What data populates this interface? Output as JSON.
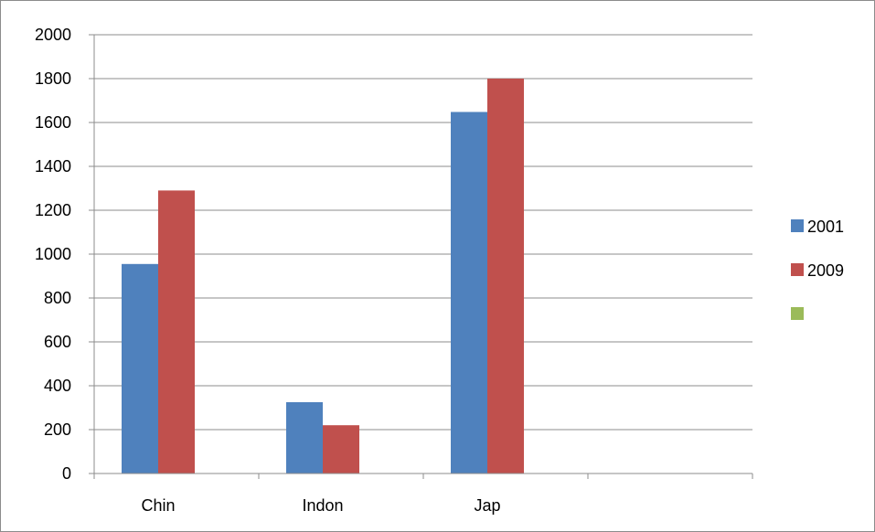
{
  "chart_data": {
    "type": "bar",
    "title": "",
    "xlabel": "",
    "ylabel": "",
    "categories": [
      "Chin",
      "Indon",
      "Jap",
      ""
    ],
    "series": [
      {
        "name": "2001",
        "color": "#4f81bd",
        "values": [
          955,
          325,
          1648,
          null
        ]
      },
      {
        "name": "2009",
        "color": "#c0504d",
        "values": [
          1290,
          220,
          1800,
          null
        ]
      },
      {
        "name": "",
        "color": "#9bbb59",
        "values": [
          null,
          null,
          null,
          null
        ]
      }
    ],
    "ylim": [
      0,
      2000
    ],
    "yticks": [
      0,
      200,
      400,
      600,
      800,
      1000,
      1200,
      1400,
      1600,
      1800,
      2000
    ],
    "grid": true,
    "legend": "right"
  }
}
